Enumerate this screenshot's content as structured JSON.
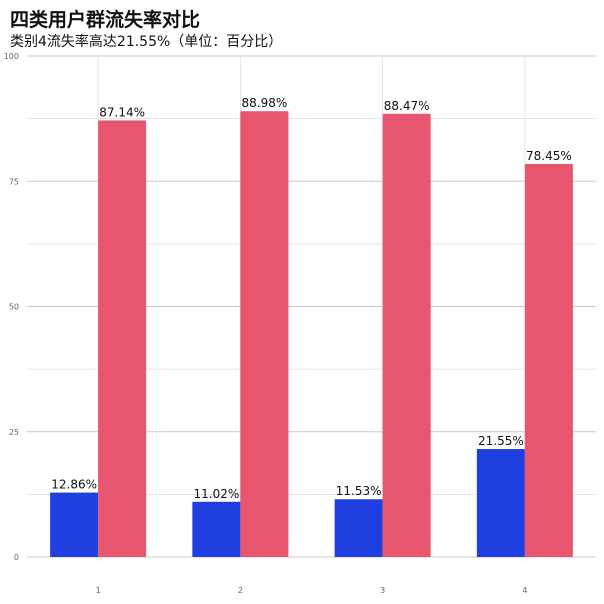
{
  "chart_data": {
    "type": "bar",
    "title": "四类用户群流失率对比",
    "subtitle": "类别4流失率高达21.55%（单位：百分比）",
    "categories": [
      "1",
      "2",
      "3",
      "4"
    ],
    "series": [
      {
        "color": "#1f3fe0",
        "values": [
          12.86,
          11.02,
          11.53,
          21.55
        ],
        "labels": [
          "12.86%",
          "11.02%",
          "11.53%",
          "21.55%"
        ]
      },
      {
        "color": "#e8556e",
        "values": [
          87.14,
          88.98,
          88.47,
          78.45
        ],
        "labels": [
          "87.14%",
          "88.98%",
          "88.47%",
          "78.45%"
        ]
      }
    ],
    "ylim": [
      0,
      100
    ],
    "yticks": [
      0,
      25,
      50,
      75,
      100
    ],
    "grid": true,
    "legend": "none"
  }
}
